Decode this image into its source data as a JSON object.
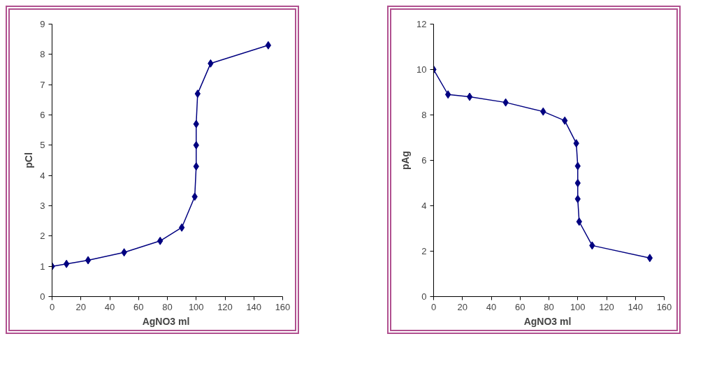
{
  "chart_data": [
    {
      "type": "line",
      "xlabel": "AgNO3  ml",
      "ylabel": "pCl",
      "marker": "diamond",
      "line_style": "solid",
      "grid": false,
      "xlim": [
        0,
        160
      ],
      "xticks": [
        0,
        20,
        40,
        60,
        80,
        100,
        120,
        140,
        160
      ],
      "ylim": [
        0,
        9
      ],
      "yticks": [
        0,
        1,
        2,
        3,
        4,
        5,
        6,
        7,
        8,
        9
      ],
      "series": [
        {
          "color": "#000080",
          "x": [
            0,
            10,
            25,
            50,
            75,
            90,
            99,
            100,
            100,
            100,
            101,
            110,
            150
          ],
          "values": [
            1,
            1.08,
            1.2,
            1.46,
            1.84,
            2.28,
            3.3,
            4.3,
            5.0,
            5.7,
            6.7,
            7.7,
            8.3
          ]
        }
      ]
    },
    {
      "type": "line",
      "xlabel": "AgNO3  ml",
      "ylabel": "pAg",
      "marker": "diamond",
      "line_style": "solid",
      "grid": false,
      "xlim": [
        0,
        160
      ],
      "xticks": [
        0,
        20,
        40,
        60,
        80,
        100,
        120,
        140,
        160
      ],
      "ylim": [
        0,
        12
      ],
      "yticks": [
        0,
        2,
        4,
        6,
        8,
        10,
        12
      ],
      "series": [
        {
          "color": "#000080",
          "x": [
            0,
            10,
            25,
            50,
            76,
            91,
            99,
            100,
            100,
            100,
            101,
            110,
            150
          ],
          "values": [
            10,
            8.9,
            8.8,
            8.55,
            8.15,
            7.75,
            6.75,
            5.75,
            5.0,
            4.3,
            3.3,
            2.25,
            1.7
          ]
        }
      ]
    }
  ]
}
